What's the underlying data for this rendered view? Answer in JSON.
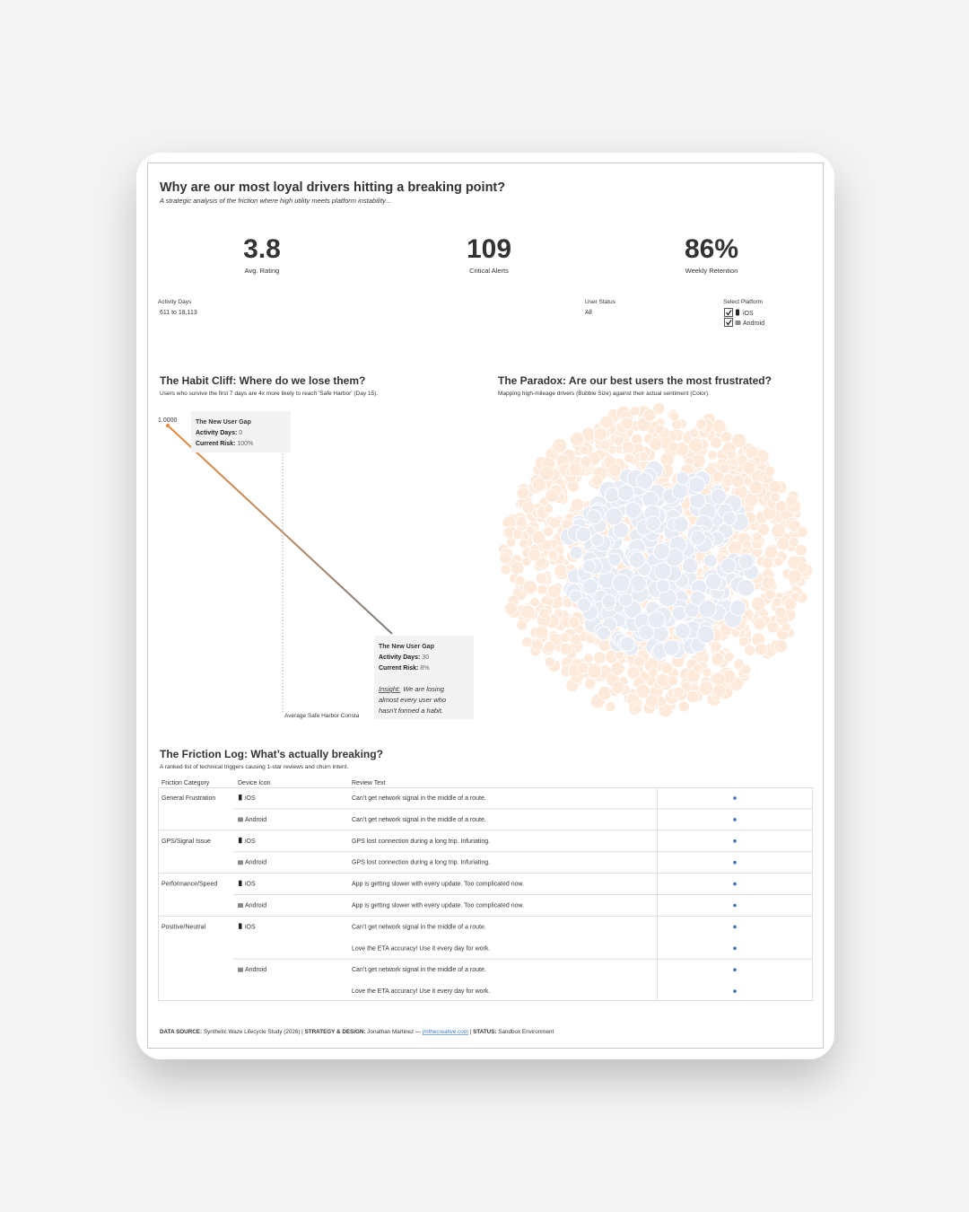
{
  "header": {
    "title": "Why are our most loyal drivers hitting a breaking point?",
    "subtitle": "A strategic analysis of the friction where high utility meets platform instability..."
  },
  "kpis": [
    {
      "value": "3.8",
      "label": "Avg. Rating"
    },
    {
      "value": "109",
      "label": "Critical Alerts"
    },
    {
      "value": "86%",
      "label": "Weekly Retention"
    }
  ],
  "filters": {
    "activity_days": {
      "label": "Activity Days",
      "value": "611 to 18,113"
    },
    "user_status": {
      "label": "User Status",
      "value": "All"
    },
    "platform": {
      "label": "Select Platform",
      "options": [
        "iOS",
        "Android"
      ]
    }
  },
  "habit_cliff": {
    "title": "The Habit Cliff: Where do we lose them?",
    "subtitle": "Users who survive the first 7 days are 4x more likely to reach 'Safe Harbor' (Day 15).",
    "y_label": "1.0000",
    "reference_line": "Average Safe Harbor Consta",
    "tooltips": [
      {
        "title": "The New User Gap",
        "rows": [
          {
            "label": "Activity Days:",
            "value": "0"
          },
          {
            "label": "Current Risk:",
            "value": "100%"
          }
        ]
      },
      {
        "title": "The New User Gap",
        "rows": [
          {
            "label": "Activity Days:",
            "value": "30"
          },
          {
            "label": "Current Risk:",
            "value": "8%"
          }
        ],
        "insight_label": "Insight:",
        "insight_lines": [
          "We are losing",
          "almost every user who",
          "hasn't formed a habit."
        ]
      }
    ]
  },
  "paradox": {
    "title": "The Paradox: Are our best users the most frustrated?",
    "subtitle": "Mapping high-mileage drivers (Bubble Size) against their actual sentiment (Color)."
  },
  "friction_log": {
    "title": "The Friction Log: What’s actually breaking?",
    "subtitle": "A ranked list of technical triggers causing 1-star reviews and churn intent.",
    "columns": [
      "Friction Category",
      "Device Icon",
      "Review Text"
    ],
    "rows": [
      [
        "General Frustration",
        "iOS",
        "Can’t get network signal in the middle of a route."
      ],
      [
        null,
        "Android",
        "Can’t get network signal in the middle of a route."
      ],
      [
        "GPS/Signal Issue",
        "iOS",
        "GPS lost connection during a long trip. Infuriating."
      ],
      [
        null,
        "Android",
        "GPS lost connection during a long trip. Infuriating."
      ],
      [
        "Performance/Speed",
        "iOS",
        "App is getting slower with every update. Too complicated now."
      ],
      [
        null,
        "Android",
        "App is getting slower with every update. Too complicated now."
      ],
      [
        "Positive/Neutral",
        "iOS",
        "Can’t get network signal in the middle of a route."
      ],
      [
        null,
        null,
        "Love the ETA accuracy! Use it every day for work."
      ],
      [
        null,
        "Android",
        "Can’t get network signal in the middle of a route."
      ],
      [
        null,
        null,
        "Love the ETA accuracy! Use it every day for work."
      ]
    ]
  },
  "footer": {
    "segments": [
      {
        "text": "DATA SOURCE:",
        "style": "bold"
      },
      {
        "text": " Synthetic Waze Lifecycle Study (2026) | ",
        "style": "plain"
      },
      {
        "text": "STRATEGY & DESIGN:",
        "style": "bold"
      },
      {
        "text": " Jonathan Martinez — ",
        "style": "plain"
      },
      {
        "text": "jmthecreative.com",
        "style": "link"
      },
      {
        "text": " | ",
        "style": "plain"
      },
      {
        "text": "STATUS:",
        "style": "bold"
      },
      {
        "text": " Sandbox Environment",
        "style": "plain"
      }
    ]
  }
}
